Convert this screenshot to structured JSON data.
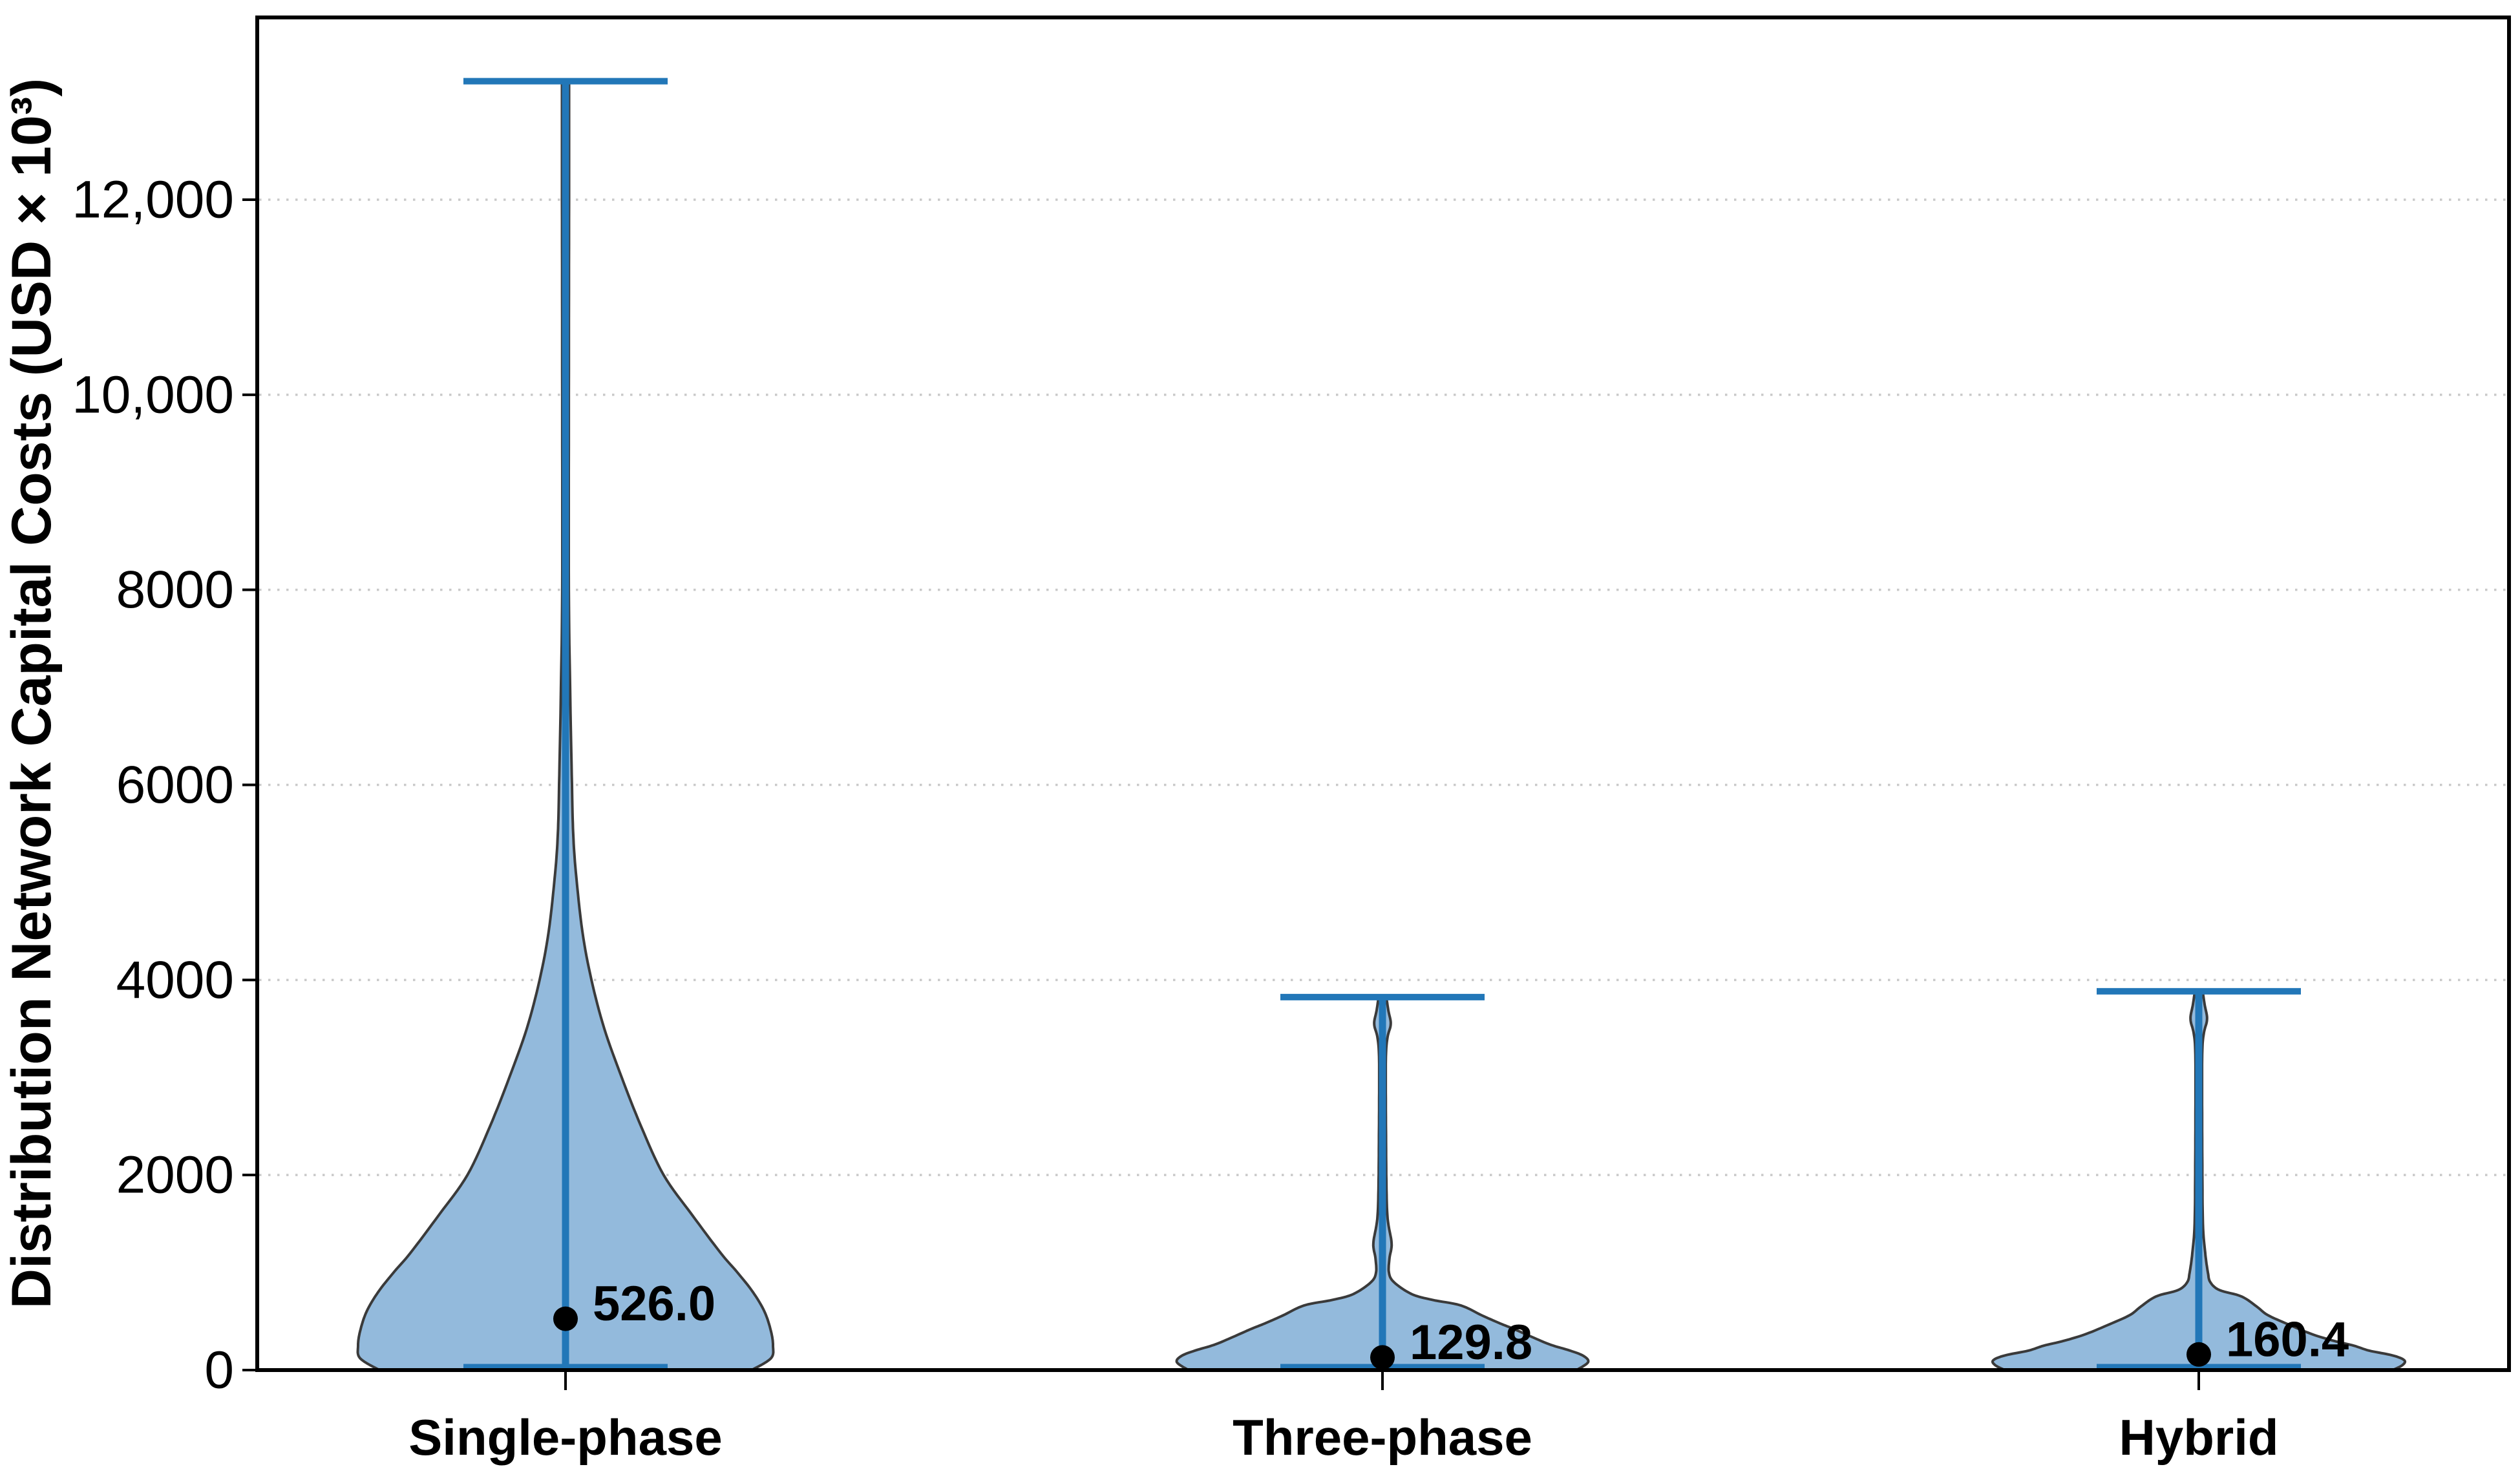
{
  "figure": {
    "background": "#ffffff"
  },
  "chart_data": {
    "type": "violin",
    "title": "",
    "xlabel": "",
    "ylabel": "Distribution Network Capital Costs (USD × 10³)",
    "categories": [
      "Single-phase",
      "Three-phase",
      "Hybrid"
    ],
    "y_ticks": [
      {
        "value": 0,
        "label": "0"
      },
      {
        "value": 2000,
        "label": "2000"
      },
      {
        "value": 4000,
        "label": "4000"
      },
      {
        "value": 6000,
        "label": "6000"
      },
      {
        "value": 8000,
        "label": "8000"
      },
      {
        "value": 10000,
        "label": "10,000"
      },
      {
        "value": 12000,
        "label": "12,000"
      }
    ],
    "ylim": [
      0,
      13870
    ],
    "grid": {
      "axis": "y",
      "style": "dotted",
      "color": "#c9c9c9"
    },
    "legend": "none",
    "series": [
      {
        "name": "Single-phase",
        "median": 526.0,
        "median_label": "526.0",
        "min": 0,
        "max": 13215,
        "density_profile": [
          [
            13215,
            0.017
          ],
          [
            12000,
            0.017
          ],
          [
            10000,
            0.016
          ],
          [
            8000,
            0.016
          ],
          [
            7000,
            0.022
          ],
          [
            6000,
            0.031
          ],
          [
            5500,
            0.037
          ],
          [
            5100,
            0.05
          ],
          [
            4500,
            0.081
          ],
          [
            4000,
            0.125
          ],
          [
            3500,
            0.187
          ],
          [
            3000,
            0.271
          ],
          [
            2500,
            0.364
          ],
          [
            2000,
            0.473
          ],
          [
            1600,
            0.607
          ],
          [
            1200,
            0.748
          ],
          [
            1000,
            0.829
          ],
          [
            800,
            0.903
          ],
          [
            600,
            0.959
          ],
          [
            400,
            0.99
          ],
          [
            250,
            1.0
          ],
          [
            120,
            0.99
          ],
          [
            0,
            0.897
          ]
        ]
      },
      {
        "name": "Three-phase",
        "median": 129.8,
        "median_label": "129.8",
        "min": 0,
        "max": 3824,
        "density_profile": [
          [
            3824,
            0.019
          ],
          [
            3690,
            0.028
          ],
          [
            3550,
            0.04
          ],
          [
            3420,
            0.025
          ],
          [
            3250,
            0.017
          ],
          [
            2900,
            0.016
          ],
          [
            2400,
            0.017
          ],
          [
            1900,
            0.019
          ],
          [
            1550,
            0.025
          ],
          [
            1300,
            0.044
          ],
          [
            1150,
            0.034
          ],
          [
            1000,
            0.031
          ],
          [
            900,
            0.056
          ],
          [
            780,
            0.14
          ],
          [
            720,
            0.24
          ],
          [
            663,
            0.377
          ],
          [
            560,
            0.48
          ],
          [
            480,
            0.565
          ],
          [
            420,
            0.635
          ],
          [
            340,
            0.72
          ],
          [
            260,
            0.81
          ],
          [
            200,
            0.903
          ],
          [
            145,
            0.969
          ],
          [
            80,
            0.991
          ],
          [
            0,
            0.935
          ]
        ]
      },
      {
        "name": "Hybrid",
        "median": 160.4,
        "median_label": "160.4",
        "min": 0,
        "max": 3884,
        "density_profile": [
          [
            3884,
            0.019
          ],
          [
            3750,
            0.028
          ],
          [
            3600,
            0.04
          ],
          [
            3460,
            0.025
          ],
          [
            3280,
            0.017
          ],
          [
            2800,
            0.016
          ],
          [
            2100,
            0.017
          ],
          [
            1500,
            0.02
          ],
          [
            1200,
            0.031
          ],
          [
            1000,
            0.044
          ],
          [
            900,
            0.056
          ],
          [
            820,
            0.1
          ],
          [
            755,
            0.206
          ],
          [
            650,
            0.28
          ],
          [
            563,
            0.333
          ],
          [
            470,
            0.43
          ],
          [
            371,
            0.542
          ],
          [
            300,
            0.65
          ],
          [
            250,
            0.748
          ],
          [
            200,
            0.82
          ],
          [
            150,
            0.935
          ],
          [
            100,
            0.991
          ],
          [
            50,
            0.981
          ],
          [
            0,
            0.935
          ]
        ]
      }
    ],
    "colors": {
      "violin_fill": "#93badc",
      "violin_edge": "#3a3a3a",
      "stem_line": "#2277b8",
      "median_dot": "#000000",
      "axis": "#000000",
      "grid": "#c9c9c9",
      "text": "#000000"
    }
  }
}
